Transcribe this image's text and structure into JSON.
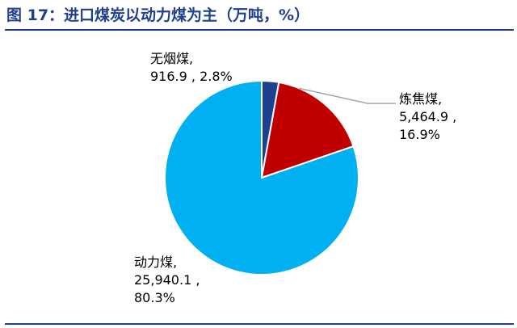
{
  "title": "图 17：进口煤炭以动力煤为主（万吨，%）",
  "chart_data": {
    "type": "pie",
    "title": "图 17：进口煤炭以动力煤为主（万吨，%）",
    "slices": [
      {
        "name": "无烟煤",
        "value": 916.9,
        "percent": 2.8,
        "color": "#1f3f8f",
        "label_lines": [
          "无烟煤,",
          "916.9 , 2.8%"
        ]
      },
      {
        "name": "炼焦煤",
        "value": 5464.9,
        "percent": 16.9,
        "color": "#c00000",
        "label_lines": [
          "炼焦煤,",
          "5,464.9 ,",
          "16.9%"
        ]
      },
      {
        "name": "动力煤",
        "value": 25940.1,
        "percent": 80.3,
        "color": "#00b0f0",
        "label_lines": [
          "动力煤,",
          "25,940.1 ,",
          "80.3%"
        ]
      }
    ],
    "start_angle": "12 o'clock",
    "direction": "clockwise",
    "legend": "none"
  }
}
